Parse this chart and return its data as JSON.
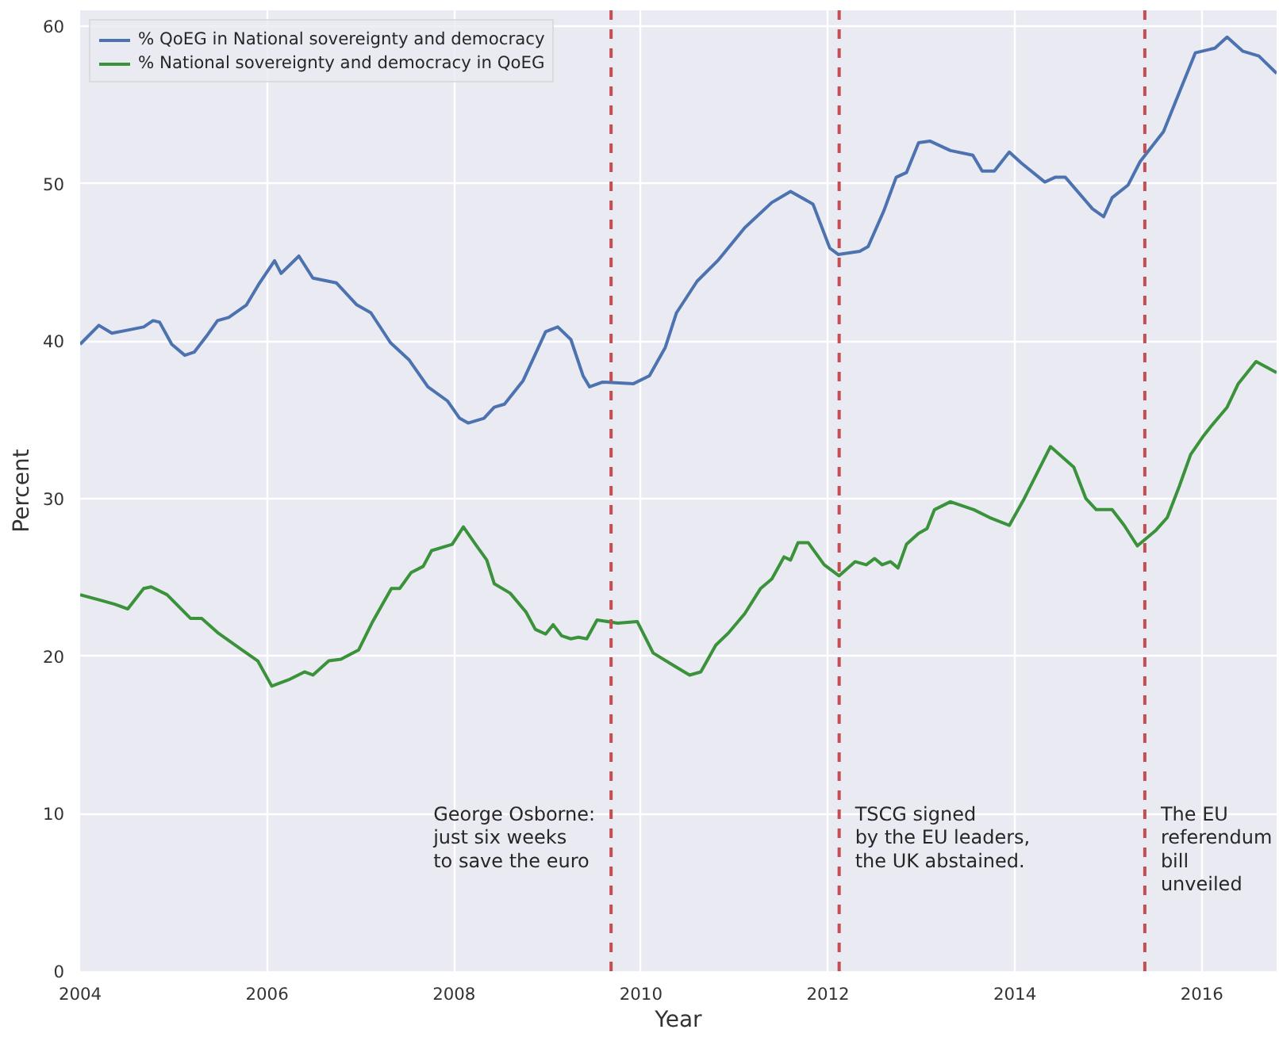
{
  "chart_data": {
    "type": "line",
    "xlabel": "Year",
    "ylabel": "Percent",
    "xlim": [
      2004,
      2016.8
    ],
    "ylim": [
      0,
      61
    ],
    "xticks": [
      2004,
      2006,
      2008,
      2010,
      2012,
      2014,
      2016
    ],
    "yticks": [
      0,
      10,
      20,
      30,
      40,
      50,
      60
    ],
    "grid": true,
    "legend": "top left",
    "line_style": "solid",
    "series": [
      {
        "name": "% QoEG in National sovereignty and democracy",
        "color": "#4c72b0",
        "x": [
          2004.0,
          2004.2,
          2004.34,
          2004.51,
          2004.68,
          2004.78,
          2004.85,
          2004.98,
          2005.12,
          2005.22,
          2005.35,
          2005.47,
          2005.59,
          2005.78,
          2005.91,
          2006.08,
          2006.15,
          2006.34,
          2006.49,
          2006.74,
          2006.96,
          2007.11,
          2007.32,
          2007.52,
          2007.72,
          2007.93,
          2008.06,
          2008.15,
          2008.32,
          2008.43,
          2008.54,
          2008.74,
          2008.98,
          2009.11,
          2009.25,
          2009.38,
          2009.45,
          2009.59,
          2009.92,
          2010.09,
          2010.26,
          2010.38,
          2010.6,
          2010.82,
          2011.11,
          2011.4,
          2011.6,
          2011.84,
          2012.02,
          2012.11,
          2012.34,
          2012.43,
          2012.6,
          2012.73,
          2012.84,
          2012.97,
          2013.09,
          2013.31,
          2013.55,
          2013.65,
          2013.78,
          2013.94,
          2014.07,
          2014.32,
          2014.43,
          2014.54,
          2014.83,
          2014.95,
          2015.04,
          2015.21,
          2015.34,
          2015.59,
          2015.76,
          2015.93,
          2016.14,
          2016.27,
          2016.44,
          2016.61,
          2016.8
        ],
        "values": [
          39.8,
          41.0,
          40.5,
          40.7,
          40.9,
          41.3,
          41.2,
          39.8,
          39.1,
          39.3,
          40.3,
          41.3,
          41.5,
          42.3,
          43.6,
          45.1,
          44.3,
          45.4,
          44.0,
          43.7,
          42.3,
          41.8,
          39.9,
          38.8,
          37.1,
          36.2,
          35.1,
          34.8,
          35.1,
          35.8,
          36.0,
          37.5,
          40.6,
          40.9,
          40.1,
          37.8,
          37.1,
          37.4,
          37.3,
          37.8,
          39.6,
          41.8,
          43.8,
          45.1,
          47.2,
          48.8,
          49.5,
          48.7,
          45.9,
          45.5,
          45.7,
          46.0,
          48.3,
          50.4,
          50.7,
          52.6,
          52.7,
          52.1,
          51.8,
          50.8,
          50.8,
          52.0,
          51.3,
          50.1,
          50.4,
          50.4,
          48.4,
          47.9,
          49.1,
          49.9,
          51.4,
          53.3,
          55.8,
          58.3,
          58.6,
          59.3,
          58.4,
          58.1,
          57.0
        ]
      },
      {
        "name": "% National sovereignty and democracy in QoEG",
        "color": "#3a923a",
        "x": [
          2004.0,
          2004.25,
          2004.37,
          2004.51,
          2004.68,
          2004.76,
          2004.93,
          2005.18,
          2005.3,
          2005.47,
          2005.73,
          2005.9,
          2006.05,
          2006.23,
          2006.4,
          2006.49,
          2006.66,
          2006.79,
          2006.98,
          2007.13,
          2007.33,
          2007.42,
          2007.54,
          2007.67,
          2007.76,
          2007.98,
          2008.1,
          2008.23,
          2008.35,
          2008.43,
          2008.6,
          2008.77,
          2008.87,
          2008.98,
          2009.06,
          2009.15,
          2009.25,
          2009.33,
          2009.42,
          2009.53,
          2009.75,
          2009.96,
          2010.13,
          2010.35,
          2010.52,
          2010.64,
          2010.8,
          2010.94,
          2011.11,
          2011.28,
          2011.4,
          2011.53,
          2011.6,
          2011.68,
          2011.79,
          2011.96,
          2012.12,
          2012.29,
          2012.41,
          2012.5,
          2012.58,
          2012.67,
          2012.75,
          2012.84,
          2012.97,
          2013.06,
          2013.14,
          2013.31,
          2013.56,
          2013.73,
          2013.94,
          2014.1,
          2014.38,
          2014.63,
          2014.76,
          2014.87,
          2015.04,
          2015.17,
          2015.31,
          2015.51,
          2015.63,
          2015.76,
          2015.88,
          2016.02,
          2016.1,
          2016.27,
          2016.39,
          2016.58,
          2016.8
        ],
        "values": [
          23.9,
          23.5,
          23.3,
          23.0,
          24.3,
          24.4,
          23.9,
          22.4,
          22.4,
          21.5,
          20.4,
          19.7,
          18.1,
          18.5,
          19.0,
          18.8,
          19.7,
          19.8,
          20.4,
          22.2,
          24.3,
          24.3,
          25.3,
          25.7,
          26.7,
          27.1,
          28.2,
          27.1,
          26.1,
          24.6,
          24.0,
          22.8,
          21.7,
          21.4,
          22.0,
          21.3,
          21.1,
          21.2,
          21.1,
          22.3,
          22.1,
          22.2,
          20.2,
          19.4,
          18.8,
          19.0,
          20.7,
          21.5,
          22.7,
          24.3,
          24.9,
          26.3,
          26.1,
          27.2,
          27.2,
          25.8,
          25.1,
          26.0,
          25.8,
          26.2,
          25.8,
          26.0,
          25.6,
          27.1,
          27.8,
          28.1,
          29.3,
          29.8,
          29.3,
          28.8,
          28.3,
          30.0,
          33.3,
          32.0,
          30.0,
          29.3,
          29.3,
          28.3,
          27.0,
          28.0,
          28.8,
          30.8,
          32.8,
          34.0,
          34.6,
          35.8,
          37.3,
          38.7,
          38.0
        ]
      }
    ],
    "ref_lines": [
      {
        "axis": "x",
        "value": 2009.68,
        "color": "#c44e52",
        "line_style": "dashed",
        "label": "George Osborne:\njust six weeks\nto save the euro"
      },
      {
        "axis": "x",
        "value": 2012.12,
        "color": "#c44e52",
        "line_style": "dashed",
        "label": "TSCG signed\nby the EU leaders,\nthe UK abstained."
      },
      {
        "axis": "x",
        "value": 2015.39,
        "color": "#c44e52",
        "line_style": "dashed",
        "label": "The EU\nreferendum\nbill\nunveiled"
      }
    ]
  }
}
